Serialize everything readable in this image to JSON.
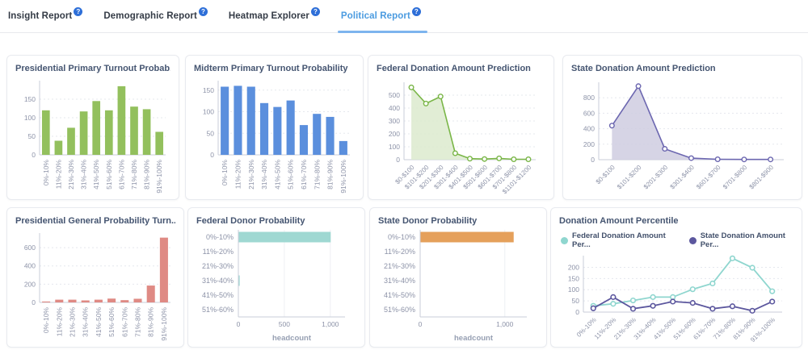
{
  "help_glyph": "?",
  "tabs": [
    {
      "label": "Insight Report",
      "active": false
    },
    {
      "label": "Demographic Report",
      "active": false
    },
    {
      "label": "Heatmap Explorer",
      "active": false
    },
    {
      "label": "Political Report",
      "active": true
    }
  ],
  "colors": {
    "accent_blue": "#2e6fd8",
    "active_tab": "#4b9be0",
    "title": "#455571",
    "tick": "#8d93a8",
    "axis": "#c8cdd9",
    "grid": "#e5e8ee",
    "vgrid": "#eef0f4",
    "axis_label": "#97a0b3"
  },
  "charts": [
    {
      "title": "Presidential Primary Turnout Probab..."
    },
    {
      "title": "Midterm Primary Turnout Probability"
    },
    {
      "title": "Federal Donation Amount Prediction"
    },
    {
      "title": "State Donation Amount Prediction"
    },
    {
      "title": "Presidential General Probability Turn..."
    },
    {
      "title": "Federal Donor Probability"
    },
    {
      "title": "State Donor Probability"
    },
    {
      "title": "Donation Amount Percentile"
    }
  ],
  "chart_data": [
    {
      "type": "bar",
      "title": "Presidential Primary Turnout Probab...",
      "categories": [
        "0%-10%",
        "11%-20%",
        "21%-30%",
        "31%-40%",
        "41%-50%",
        "51%-60%",
        "61%-70%",
        "71%-80%",
        "81%-90%",
        "91%-100%"
      ],
      "values": [
        120,
        38,
        73,
        117,
        145,
        120,
        185,
        130,
        123,
        62
      ],
      "color": "#93c05d",
      "yticks": [
        0,
        50,
        100,
        150
      ],
      "ylim": [
        0,
        200
      ],
      "grid": "dashed-horizontal",
      "xlabel_rotation": -90
    },
    {
      "type": "bar",
      "title": "Midterm Primary Turnout Probability",
      "categories": [
        "0%-10%",
        "11%-20%",
        "21%-30%",
        "31%-40%",
        "41%-50%",
        "51%-60%",
        "61%-70%",
        "71%-80%",
        "81%-90%",
        "91%-100%"
      ],
      "values": [
        158,
        160,
        158,
        120,
        111,
        126,
        69,
        95,
        88,
        32
      ],
      "color": "#5b8fdd",
      "yticks": [
        0,
        50,
        100,
        150
      ],
      "ylim": [
        0,
        172
      ],
      "grid": "dashed-horizontal",
      "xlabel_rotation": -90
    },
    {
      "type": "area",
      "title": "Federal Donation Amount Prediction",
      "categories": [
        "$0-$100",
        "$101-$200",
        "$201-$300",
        "$301-$400",
        "$401-$500",
        "$501-$600",
        "$601-$700",
        "$701-$800",
        "$1101-$1200"
      ],
      "values": [
        560,
        435,
        490,
        50,
        8,
        5,
        10,
        3,
        3
      ],
      "color": "#7ab648",
      "fill": "#dceace",
      "yticks": [
        0,
        100,
        200,
        300,
        400,
        500
      ],
      "ylim": [
        0,
        600
      ],
      "grid": "dashed-horizontal",
      "xlabel_rotation": -45
    },
    {
      "type": "area",
      "title": "State Donation Amount Prediction",
      "categories": [
        "$0-$100",
        "$101-$200",
        "$201-$300",
        "$301-$400",
        "$601-$700",
        "$701-$800",
        "$801-$900"
      ],
      "values": [
        440,
        950,
        140,
        20,
        5,
        3,
        3
      ],
      "color": "#6c67b0",
      "fill": "#cfcde1",
      "yticks": [
        0,
        200,
        400,
        600,
        800
      ],
      "ylim": [
        0,
        1000
      ],
      "grid": "dashed-horizontal",
      "xlabel_rotation": -45
    },
    {
      "type": "bar",
      "title": "Presidential General Probability Turn...",
      "categories": [
        "0%-10%",
        "11%-20%",
        "21%-30%",
        "31%-40%",
        "41%-50%",
        "51%-60%",
        "61%-70%",
        "71%-80%",
        "81%-90%",
        "91%-100%"
      ],
      "values": [
        10,
        30,
        30,
        22,
        30,
        42,
        25,
        40,
        185,
        710
      ],
      "color": "#df8a84",
      "yticks": [
        0,
        200,
        400,
        600
      ],
      "ylim": [
        0,
        760
      ],
      "grid": "dashed-horizontal",
      "xlabel_rotation": -90
    },
    {
      "type": "hbar",
      "title": "Federal Donor Probability",
      "categories": [
        "0%-10%",
        "11%-20%",
        "21%-30%",
        "31%-40%",
        "41%-50%",
        "51%-60%"
      ],
      "values": [
        1000,
        0,
        0,
        10,
        0,
        0
      ],
      "color": "#9fd8d2",
      "xticks": [
        0,
        500,
        1000
      ],
      "xtick_labels": [
        "0",
        "500",
        "1,000"
      ],
      "xlim": [
        0,
        1160
      ],
      "xlabel": "headcount",
      "grid": "vertical"
    },
    {
      "type": "hbar",
      "title": "State Donor Probability",
      "categories": [
        "0%-10%",
        "11%-20%",
        "21%-30%",
        "31%-40%",
        "41%-50%",
        "51%-60%"
      ],
      "values": [
        1100,
        0,
        0,
        0,
        0,
        0
      ],
      "color": "#e5a05b",
      "xticks": [
        0,
        1000
      ],
      "xtick_labels": [
        "0",
        "1,000"
      ],
      "xlim": [
        0,
        1260
      ],
      "xlabel": "headcount",
      "grid": "vertical"
    },
    {
      "type": "line",
      "title": "Donation Amount Percentile",
      "categories": [
        "0%-10%",
        "11%-20%",
        "21%-30%",
        "31%-40%",
        "41%-50%",
        "51%-60%",
        "61%-70%",
        "71%-80%",
        "81%-90%",
        "91%-100%"
      ],
      "series": [
        {
          "name": "Federal Donation Amount Per...",
          "color": "#8fd6cf",
          "values": [
            28,
            37,
            52,
            67,
            67,
            102,
            128,
            240,
            198,
            93
          ]
        },
        {
          "name": "State Donation Amount Per...",
          "color": "#5c579e",
          "values": [
            17,
            67,
            15,
            28,
            47,
            41,
            15,
            26,
            6,
            47
          ]
        }
      ],
      "yticks": [
        0,
        50,
        100,
        150,
        200
      ],
      "ylim": [
        0,
        252
      ],
      "grid": "dashed-horizontal",
      "legend_position": "top",
      "xlabel_rotation": -45
    }
  ]
}
